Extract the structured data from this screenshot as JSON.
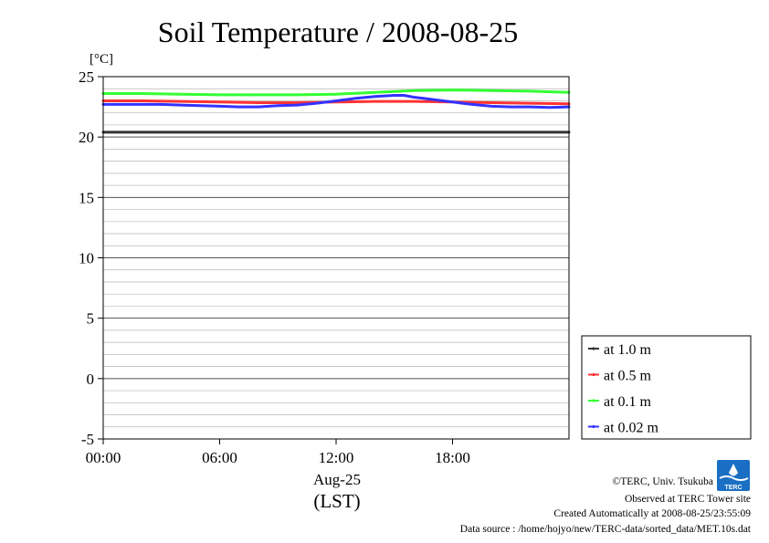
{
  "chart_data": {
    "type": "line",
    "title": "Soil Temperature / 2008-08-25",
    "yunit": "[°C]",
    "xlabel_date": "Aug-25",
    "xlabel_tz": "(LST)",
    "ylim": [
      -5,
      25
    ],
    "yticks": [
      25,
      20,
      15,
      10,
      5,
      0,
      -5
    ],
    "y_minor_step": 1,
    "xlim": [
      0,
      24
    ],
    "xticks": [
      {
        "value": 0,
        "label": "00:00"
      },
      {
        "value": 6,
        "label": "06:00"
      },
      {
        "value": 12,
        "label": "12:00"
      },
      {
        "value": 18,
        "label": "18:00"
      }
    ],
    "grid": true,
    "legend_position": "right",
    "series": [
      {
        "name": "at 1.0 m",
        "color": "#333333",
        "x": [
          0,
          3,
          6,
          9,
          12,
          15,
          18,
          21,
          24
        ],
        "y": [
          20.4,
          20.4,
          20.4,
          20.4,
          20.4,
          20.4,
          20.4,
          20.4,
          20.4
        ]
      },
      {
        "name": "at 0.5 m",
        "color": "#ff3333",
        "x": [
          0,
          2,
          4,
          6,
          8,
          10,
          12,
          14,
          16,
          18,
          20,
          22,
          24
        ],
        "y": [
          23.0,
          23.0,
          22.95,
          22.9,
          22.85,
          22.85,
          22.9,
          22.95,
          22.95,
          22.9,
          22.85,
          22.8,
          22.75
        ]
      },
      {
        "name": "at 0.1 m",
        "color": "#33ff33",
        "x": [
          0,
          2,
          4,
          6,
          8,
          10,
          12,
          14,
          16,
          18,
          20,
          22,
          24
        ],
        "y": [
          23.6,
          23.6,
          23.55,
          23.5,
          23.5,
          23.5,
          23.55,
          23.7,
          23.85,
          23.9,
          23.85,
          23.8,
          23.7
        ]
      },
      {
        "name": "at 0.02 m",
        "color": "#3333ff",
        "x": [
          0,
          1,
          2,
          3,
          4,
          5,
          6,
          7,
          8,
          9,
          10,
          11,
          12,
          13,
          14,
          15,
          15.5,
          16,
          16.5,
          17,
          18,
          19,
          20,
          21,
          22,
          23,
          24
        ],
        "y": [
          22.7,
          22.7,
          22.7,
          22.7,
          22.65,
          22.6,
          22.55,
          22.5,
          22.5,
          22.6,
          22.65,
          22.8,
          23.0,
          23.2,
          23.35,
          23.45,
          23.45,
          23.3,
          23.2,
          23.1,
          22.9,
          22.7,
          22.55,
          22.5,
          22.5,
          22.45,
          22.5
        ]
      }
    ]
  },
  "credits": {
    "copyright": "©TERC, Univ. Tsukuba",
    "observed": "Observed at TERC Tower site",
    "created": "Created Automatically at 2008-08-25/23:55:09",
    "source": "Data source : /home/hojyo/new/TERC-data/sorted_data/MET.10s.dat"
  },
  "logo": {
    "text": "TERC",
    "color": "#1a6fc4"
  }
}
